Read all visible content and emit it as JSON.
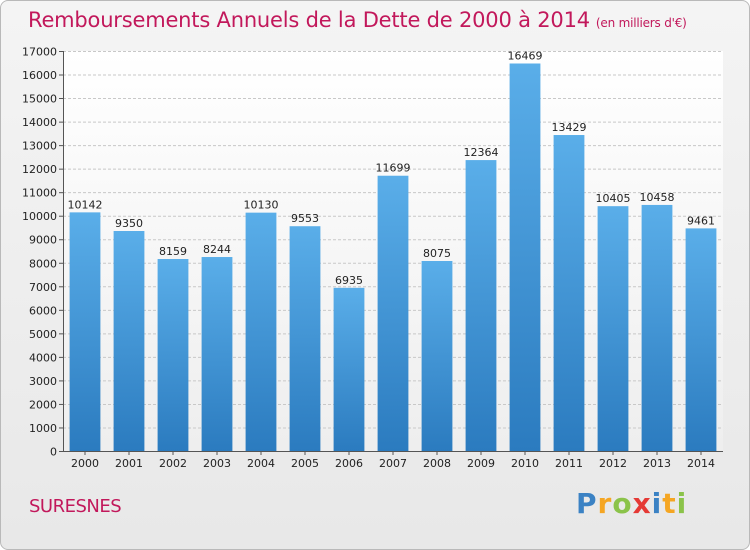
{
  "header": {
    "title": "Remboursements Annuels de la Dette de 2000 à 2014",
    "unit": "(en milliers d'€)"
  },
  "footer": {
    "commune": "SURESNES",
    "logo_letters": [
      "P",
      "r",
      "o",
      "x",
      "i",
      "t",
      "i"
    ]
  },
  "colors": {
    "bar_light": "#5aaee9",
    "bar_dark": "#2b7bbf",
    "title": "#c2185b",
    "logo": [
      "#3b82c4",
      "#f5a623",
      "#8bc34a",
      "#e53935",
      "#3b82c4",
      "#f5a623",
      "#8bc34a"
    ]
  },
  "chart_data": {
    "type": "bar",
    "title": "Remboursements Annuels de la Dette de 2000 à 2014",
    "subtitle": "(en milliers d'€)",
    "categories": [
      "2000",
      "2001",
      "2002",
      "2003",
      "2004",
      "2005",
      "2006",
      "2007",
      "2008",
      "2009",
      "2010",
      "2011",
      "2012",
      "2013",
      "2014"
    ],
    "values": [
      10142,
      9350,
      8159,
      8244,
      10130,
      9553,
      6935,
      11699,
      8075,
      12364,
      16469,
      13429,
      10405,
      10458,
      9461
    ],
    "ylim": [
      0,
      17000
    ],
    "yticks": [
      0,
      1000,
      2000,
      3000,
      4000,
      5000,
      6000,
      7000,
      8000,
      9000,
      10000,
      11000,
      12000,
      13000,
      14000,
      15000,
      16000,
      17000
    ],
    "grid": true,
    "legend": "none"
  }
}
